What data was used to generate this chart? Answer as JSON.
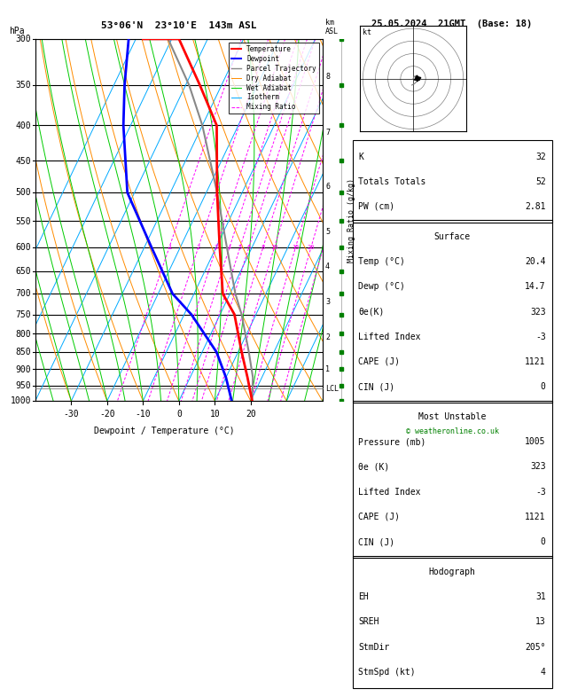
{
  "title_left": "53°06'N  23°10'E  143m ASL",
  "title_right": "25.05.2024  21GMT  (Base: 18)",
  "xlabel": "Dewpoint / Temperature (°C)",
  "pressure_levels": [
    300,
    350,
    400,
    450,
    500,
    550,
    600,
    650,
    700,
    750,
    800,
    850,
    900,
    950,
    1000
  ],
  "pmin": 300,
  "pmax": 1000,
  "tmin": -40,
  "tmax": 40,
  "skew_factor": 0.6,
  "isotherm_color": "#00AAFF",
  "dry_adiabat_color": "#FF8C00",
  "wet_adiabat_color": "#00CC00",
  "mixing_ratio_color": "#FF00FF",
  "mixing_ratios": [
    1,
    2,
    3,
    4,
    5,
    6,
    8,
    10,
    15,
    20,
    25
  ],
  "temp_profile_T": [
    20.4,
    16.0,
    11.0,
    4.0,
    -2.0,
    -9.0,
    -17.0,
    -26.0,
    -36.0,
    -48.0,
    -58.0
  ],
  "temp_profile_P": [
    1000,
    925,
    850,
    750,
    700,
    600,
    500,
    400,
    350,
    300,
    300
  ],
  "dewp_profile_T": [
    14.7,
    10.0,
    4.0,
    -8.0,
    -16.0,
    -28.0,
    -42.0,
    -52.0,
    -57.0,
    -62.0,
    -62.0
  ],
  "dewp_profile_P": [
    1000,
    925,
    850,
    750,
    700,
    600,
    500,
    400,
    350,
    300,
    300
  ],
  "parcel_profile_T": [
    20.4,
    17.5,
    13.0,
    6.0,
    1.5,
    -7.0,
    -17.0,
    -30.0,
    -39.0,
    -51.0,
    -51.0
  ],
  "parcel_profile_P": [
    1000,
    925,
    850,
    750,
    700,
    600,
    500,
    400,
    350,
    300,
    300
  ],
  "lcl_pressure": 960,
  "temp_color": "#FF0000",
  "dewp_color": "#0000FF",
  "parcel_color": "#888888",
  "background_color": "#FFFFFF",
  "km_ticks": [
    1,
    2,
    3,
    4,
    5,
    6,
    7,
    8
  ],
  "km_pressures": [
    900,
    810,
    720,
    640,
    570,
    490,
    410,
    340
  ],
  "wind_pressures": [
    1000,
    950,
    900,
    850,
    800,
    750,
    700,
    650,
    600,
    550,
    500,
    450,
    400,
    350,
    300
  ],
  "stats": {
    "K": 32,
    "Totals Totals": 52,
    "PW (cm)": 2.81,
    "Surface_label": "Surface",
    "Temp_C": 20.4,
    "Dewp_C": 14.7,
    "theta_e_K": 323,
    "Lifted_Index": -3,
    "CAPE_J": 1121,
    "CIN_J": 0,
    "MU_label": "Most Unstable",
    "MU_Pressure_mb": 1005,
    "MU_theta_e_K": 323,
    "MU_Lifted_Index": -3,
    "MU_CAPE_J": 1121,
    "MU_CIN_J": 0,
    "Hodo_label": "Hodograph",
    "EH": 31,
    "SREH": 13,
    "StmDir": "205°",
    "StmSpd_kt": 4
  }
}
